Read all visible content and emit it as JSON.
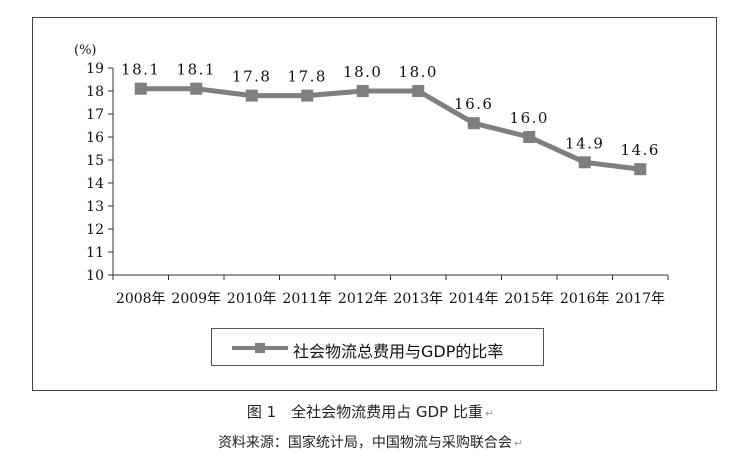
{
  "chart_data": {
    "type": "line",
    "unit_label": "(%)",
    "categories": [
      "2008年",
      "2009年",
      "2010年",
      "2011年",
      "2012年",
      "2013年",
      "2014年",
      "2015年",
      "2016年",
      "2017年"
    ],
    "series": [
      {
        "name": "社会物流总费用与GDP的比率",
        "values": [
          18.1,
          18.1,
          17.8,
          17.8,
          18.0,
          18.0,
          16.6,
          16.0,
          14.9,
          14.6
        ],
        "data_labels": [
          "18.1",
          "18.1",
          "17.8",
          "17.8",
          "18.0",
          "18.0",
          "16.6",
          "16.0",
          "14.9",
          "14.6"
        ],
        "color": "#7f7f7f",
        "marker": "square"
      }
    ],
    "y_ticks": [
      "10",
      "11",
      "12",
      "13",
      "14",
      "15",
      "16",
      "17",
      "18",
      "19"
    ],
    "ylim": [
      10,
      19
    ],
    "grid": false,
    "legend_position": "bottom"
  },
  "captions": {
    "figure_title": "图 1　全社会物流费用占 GDP 比重",
    "source": "资料来源：国家统计局，中国物流与采购联合会"
  },
  "paragraph_mark": "↵"
}
